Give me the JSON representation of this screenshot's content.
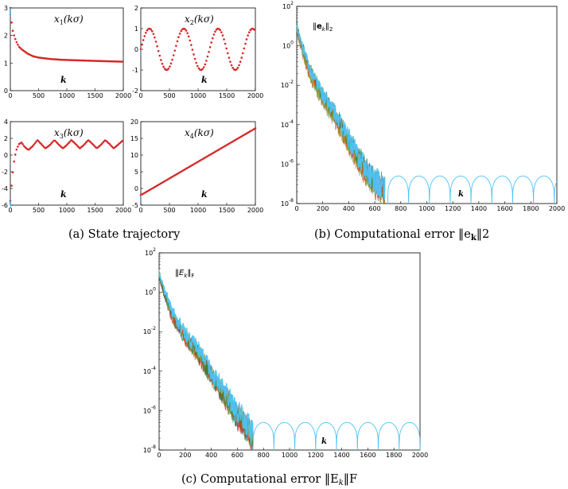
{
  "colors": {
    "state_dots": "#d62728",
    "error_main": "#4fc3f7",
    "error_overlay": [
      "#2e7d32",
      "#7cb342",
      "#e65100",
      "#c62828",
      "#8d6e63",
      "#1565c0"
    ]
  },
  "chart_data": [
    {
      "id": "x1",
      "type": "scatter",
      "panel": "a",
      "title": "x1(kσ)",
      "title_base": "x",
      "title_sub": "1",
      "title_arg": "(kσ)",
      "xlabel": "k",
      "xlim": [
        0,
        2000
      ],
      "ylim": [
        0,
        3
      ],
      "xticks": [
        "0",
        "500",
        "1000",
        "1500",
        "2000"
      ],
      "yticks": [
        "0",
        "1",
        "2",
        "3"
      ],
      "x": [
        0,
        25,
        50,
        100,
        150,
        200,
        300,
        400,
        500,
        700,
        900,
        1200,
        1500,
        2000
      ],
      "y": [
        3.0,
        2.4,
        2.1,
        1.8,
        1.6,
        1.5,
        1.35,
        1.25,
        1.2,
        1.15,
        1.12,
        1.1,
        1.08,
        1.05
      ]
    },
    {
      "id": "x2",
      "type": "scatter",
      "panel": "a",
      "title": "x2(kσ)",
      "title_base": "x",
      "title_sub": "2",
      "title_arg": "(kσ)",
      "xlabel": "k",
      "xlim": [
        0,
        2000
      ],
      "ylim": [
        -2,
        2
      ],
      "xticks": [
        "0",
        "500",
        "1000",
        "1500",
        "2000"
      ],
      "yticks": [
        "-2",
        "-1",
        "0",
        "1",
        "2"
      ],
      "x": [
        0,
        150,
        300,
        450,
        600,
        750,
        900,
        1050,
        1200,
        1350,
        1500,
        1650,
        1800,
        1950,
        2000
      ],
      "y": [
        0.0,
        1.0,
        0.2,
        -1.0,
        -0.3,
        1.0,
        0.1,
        -1.0,
        -0.2,
        1.0,
        0.3,
        -1.0,
        -0.2,
        0.9,
        1.0
      ]
    },
    {
      "id": "x3",
      "type": "scatter",
      "panel": "a",
      "title": "x3(kσ)",
      "title_base": "x",
      "title_sub": "3",
      "title_arg": "(kσ)",
      "xlabel": "k",
      "xlim": [
        0,
        2000
      ],
      "ylim": [
        -6,
        4
      ],
      "xticks": [
        "0",
        "500",
        "1000",
        "1500",
        "2000"
      ],
      "yticks": [
        "-6",
        "-4",
        "-2",
        "0",
        "2",
        "4"
      ],
      "x": [
        0,
        30,
        60,
        100,
        150,
        200,
        250,
        320,
        400,
        480,
        550,
        620,
        700,
        780,
        850,
        930,
        1000,
        1080,
        1160,
        1230,
        1300,
        1380,
        1460,
        1530,
        1600,
        1680,
        1760,
        1830,
        1900,
        2000
      ],
      "y": [
        -5.5,
        -3.0,
        -1.0,
        0.5,
        1.3,
        1.5,
        1.0,
        0.6,
        1.1,
        1.8,
        1.3,
        0.8,
        1.2,
        1.8,
        1.3,
        0.8,
        1.2,
        1.8,
        1.3,
        0.8,
        1.2,
        1.8,
        1.3,
        0.8,
        1.2,
        1.8,
        1.3,
        0.8,
        1.2,
        1.8
      ]
    },
    {
      "id": "x4",
      "type": "scatter",
      "panel": "a",
      "title": "x4(kσ)",
      "title_base": "x",
      "title_sub": "4",
      "title_arg": "(kσ)",
      "xlabel": "k",
      "xlim": [
        0,
        2000
      ],
      "ylim": [
        -5,
        20
      ],
      "xticks": [
        "0",
        "500",
        "1000",
        "1500",
        "2000"
      ],
      "yticks": [
        "-5",
        "0",
        "5",
        "10",
        "15",
        "20"
      ],
      "x": [
        0,
        2000
      ],
      "y": [
        -2.0,
        18.0
      ]
    },
    {
      "id": "e2",
      "type": "line",
      "panel": "b",
      "title": "||e_k||_2",
      "yscale": "log",
      "xlabel": "k",
      "xlim": [
        0,
        2000
      ],
      "ylim_exp": [
        -8,
        2
      ],
      "xticks": [
        "0",
        "200",
        "400",
        "600",
        "800",
        "1000",
        "1200",
        "1400",
        "1600",
        "1800",
        "2000"
      ],
      "ytick_exps": [
        "-8",
        "-6",
        "-4",
        "-2",
        "0",
        "2"
      ],
      "decay": {
        "x": [
          0,
          30,
          100,
          200,
          300,
          400,
          500,
          600,
          680
        ],
        "log10_y": [
          1.0,
          0.1,
          -1.3,
          -2.6,
          -3.6,
          -4.8,
          -6.0,
          -6.9,
          -7.3
        ]
      },
      "arches": {
        "x_start": 700,
        "period": 160,
        "log10_peak": -6.6,
        "log10_trough": -8.0
      }
    },
    {
      "id": "EF",
      "type": "line",
      "panel": "c",
      "title": "||E_k||_F",
      "yscale": "log",
      "xlabel": "k",
      "xlim": [
        0,
        2000
      ],
      "ylim_exp": [
        -8,
        2
      ],
      "xticks": [
        "0",
        "200",
        "400",
        "600",
        "800",
        "1000",
        "1200",
        "1400",
        "1600",
        "1800",
        "2000"
      ],
      "ytick_exps": [
        "-8",
        "-6",
        "-4",
        "-2",
        "0",
        "2"
      ],
      "decay": {
        "x": [
          0,
          30,
          100,
          200,
          300,
          400,
          500,
          600,
          680,
          720
        ],
        "log10_y": [
          1.0,
          0.2,
          -1.1,
          -2.2,
          -3.0,
          -4.1,
          -5.1,
          -6.2,
          -6.8,
          -7.3
        ]
      },
      "arches": {
        "x_start": 720,
        "period": 160,
        "log10_peak": -6.6,
        "log10_trough": -8.0
      }
    }
  ],
  "captions": {
    "a": "(a) State trajectory",
    "b_prefix": "(b) Computational error ‖e",
    "b_sub": "k",
    "b_suffix": "‖2",
    "c_prefix": "(c) Computational error ‖E",
    "c_sub": "k",
    "c_suffix": "‖F"
  }
}
